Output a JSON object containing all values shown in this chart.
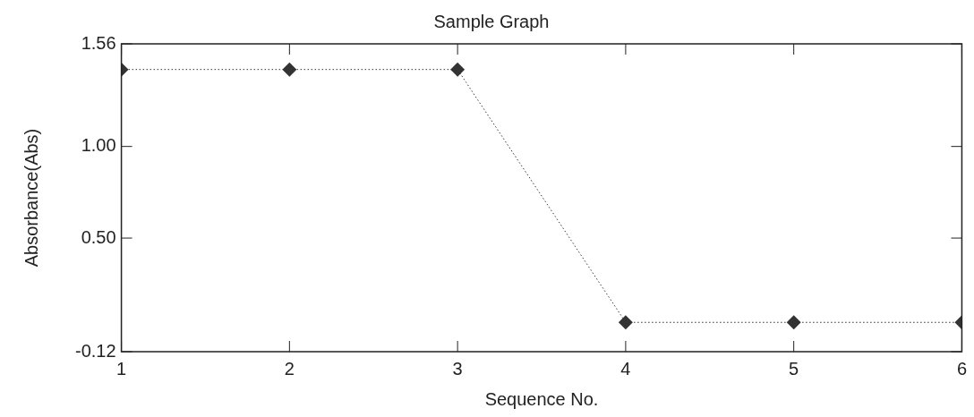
{
  "chart_data": {
    "type": "line",
    "title": "Sample Graph",
    "xlabel": "Sequence No.",
    "ylabel": "Absorbance(Abs)",
    "x": [
      1,
      2,
      3,
      4,
      5,
      6
    ],
    "series": [
      {
        "color": "#333333",
        "values": [
          1.42,
          1.42,
          1.42,
          0.04,
          0.04,
          0.04
        ]
      }
    ],
    "xlim": [
      1,
      6
    ],
    "xticks": [
      1,
      2,
      3,
      4,
      5,
      6
    ],
    "ylim": [
      -0.12,
      1.56
    ],
    "yticks": [
      -0.12,
      {
        "value": 0.5,
        "label": "0.50"
      },
      {
        "value": 1,
        "label": "1.00"
      },
      1.56
    ],
    "marker": "diamond",
    "line_style": "dotted",
    "legend": false
  }
}
